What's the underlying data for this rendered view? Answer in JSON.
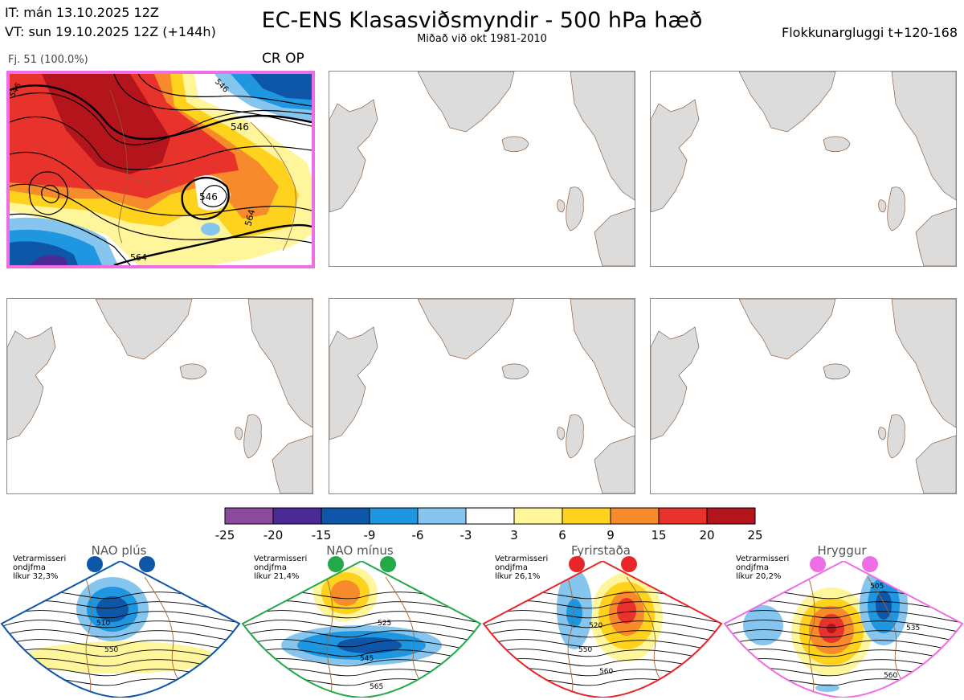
{
  "header": {
    "it": "IT: mán 13.10.2025 12Z",
    "vt": "VT: sun 19.10.2025 12Z  (+144h)",
    "title": "EC-ENS Klasasviðsmyndir - 500 hPa hæð",
    "subtitle": "Miðað við okt 1981-2010",
    "window": "Flokkunargluggi t+120-168"
  },
  "cluster": {
    "member_label": "Fj. 51 (100.0%)",
    "tag": "CR OP",
    "contour_labels": [
      "546",
      "546",
      "564",
      "564",
      "546",
      "546"
    ]
  },
  "colorbar": {
    "ticks": [
      "-25",
      "-20",
      "-15",
      "-9",
      "-6",
      "-3",
      "3",
      "6",
      "9",
      "15",
      "20",
      "25"
    ],
    "colors": [
      "#8c4a9c",
      "#4a2a96",
      "#0d56a8",
      "#1e96e0",
      "#86c6ee",
      "#ffffff",
      "#fff59a",
      "#ffd21e",
      "#f78a2a",
      "#e8322c",
      "#b4141c"
    ]
  },
  "regimes": [
    {
      "title": "NAO plús",
      "text": [
        "Vetrarmisseri",
        "ondjfma",
        "líkur 32,3%"
      ],
      "color": "#0d56a8",
      "labels": [
        "510",
        "550"
      ]
    },
    {
      "title": "NAO mínus",
      "text": [
        "Vetrarmisseri",
        "ondjfma",
        "líkur 21,4%"
      ],
      "color": "#23a84a",
      "labels": [
        "525",
        "545",
        "565"
      ]
    },
    {
      "title": "Fyrirstaða",
      "text": [
        "Vetrarmisseri",
        "ondjfma",
        "líkur 26,1%"
      ],
      "color": "#e8262a",
      "labels": [
        "520",
        "550",
        "560"
      ]
    },
    {
      "title": "Hryggur",
      "text": [
        "Vetrarmisseri",
        "ondjfma",
        "líkur 20,2%"
      ],
      "color": "#ee6ee6",
      "labels": [
        "505",
        "535",
        "560"
      ]
    }
  ]
}
